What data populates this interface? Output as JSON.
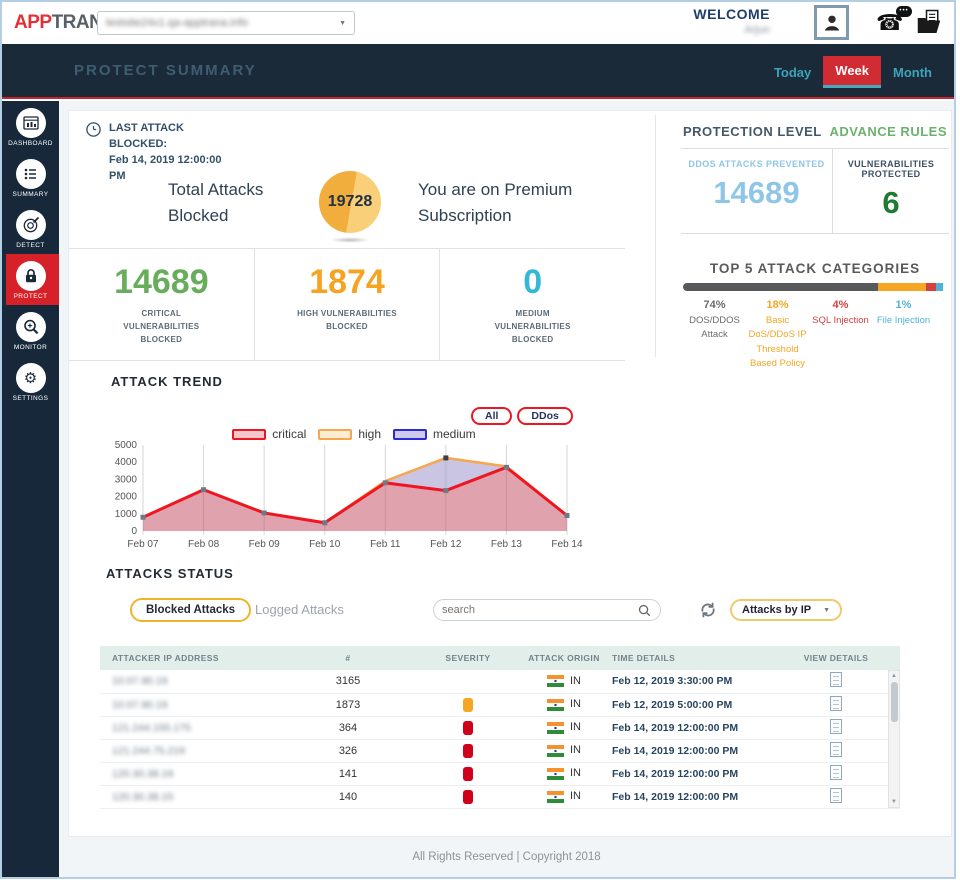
{
  "topbar": {
    "logo_part1": "APP",
    "logo_part2": "TRANA",
    "domain_dropdown": {
      "value": "testsite24x1.qa-apptrana.info",
      "blurred": true
    },
    "welcome_label": "WELCOME",
    "user_name": "Arjun",
    "user_name_blurred": true
  },
  "header": {
    "title": "PROTECT SUMMARY",
    "tabs": [
      {
        "label": "Today",
        "active": false
      },
      {
        "label": "Week",
        "active": true
      },
      {
        "label": "Month",
        "active": false
      }
    ]
  },
  "sidebar": {
    "items": [
      {
        "label": "DASHBOARD",
        "active": false
      },
      {
        "label": "SUMMARY",
        "active": false
      },
      {
        "label": "DETECT",
        "active": false
      },
      {
        "label": "PROTECT",
        "active": true
      },
      {
        "label": "MONITOR",
        "active": false
      },
      {
        "label": "SETTINGS",
        "active": false
      }
    ]
  },
  "overview": {
    "last_attack_label": "LAST ATTACK BLOCKED:",
    "last_attack_time": "Feb 14, 2019 12:00:00 PM",
    "total_attacks_label": "Total Attacks Blocked",
    "total_attacks_value": "19728",
    "subscription_text": "You are on Premium Subscription",
    "stats": [
      {
        "value": "14689",
        "label": "CRITICAL VULNERABILITIES BLOCKED",
        "color": "#67ad5b"
      },
      {
        "value": "1874",
        "label": "HIGH VULNERABILITIES BLOCKED",
        "color": "#f6a321"
      },
      {
        "value": "0",
        "label": "MEDIUM VULNERABILITIES BLOCKED",
        "color": "#35b8d8"
      }
    ]
  },
  "protection_panel": {
    "title": "PROTECTION LEVEL",
    "link": "ADVANCE RULES",
    "ddos_label": "DDOS ATTACKS PREVENTED",
    "ddos_value": "14689",
    "vuln_label": "VULNERABILITIES PROTECTED",
    "vuln_value": "6",
    "top_categories_title": "TOP 5 ATTACK CATEGORIES",
    "categories": [
      {
        "pct": "74%",
        "label": "DOS/DDOS Attack",
        "color": "#6b6b6b",
        "bar_color": "#58595b",
        "width": 74
      },
      {
        "pct": "18%",
        "label": "Basic DoS/DDoS IP Threshold Based Policy",
        "color": "#f5a623",
        "bar_color": "#f5a623",
        "width": 18
      },
      {
        "pct": "4%",
        "label": "SQL Injection",
        "color": "#d43f3f",
        "bar_color": "#d43f3f",
        "width": 4
      },
      {
        "pct": "1%",
        "label": "File Injection",
        "color": "#4fb3d9",
        "bar_color": "#4fb3d9",
        "width": 1
      }
    ]
  },
  "chart_data": {
    "type": "area",
    "title": "ATTACK TREND",
    "filters": [
      "All",
      "DDos"
    ],
    "legend": [
      "critical",
      "high",
      "medium"
    ],
    "x": [
      "Feb 07",
      "Feb 08",
      "Feb 09",
      "Feb 10",
      "Feb 11",
      "Feb 12",
      "Feb 13",
      "Feb 14"
    ],
    "ylim": [
      0,
      5000
    ],
    "yticks": [
      0,
      1000,
      2000,
      3000,
      4000,
      5000
    ],
    "series": [
      {
        "name": "critical",
        "line_color": "#ee1622",
        "fill": "rgba(199,86,103,0.55)",
        "values": [
          800,
          2400,
          1050,
          480,
          2800,
          2350,
          3700,
          900
        ]
      },
      {
        "name": "high",
        "line_color": "#f7a54e",
        "fill": "rgba(148,139,200,0.5)",
        "values": [
          800,
          2400,
          1050,
          480,
          2900,
          4250,
          3750,
          900
        ]
      },
      {
        "name": "medium",
        "line_color": "#2b2bd5",
        "values": [
          0,
          0,
          0,
          0,
          0,
          0,
          0,
          0
        ]
      }
    ]
  },
  "attacks_status": {
    "title": "ATTACKS STATUS",
    "tabs": [
      {
        "label": "Blocked Attacks",
        "active": true
      },
      {
        "label": "Logged Attacks",
        "active": false
      }
    ],
    "search_placeholder": "search",
    "filter_dropdown": "Attacks by IP",
    "table": {
      "columns": [
        "ATTACKER IP ADDRESS",
        "#",
        "SEVERITY",
        "ATTACK ORIGIN",
        "TIME DETAILS",
        "VIEW DETAILS"
      ],
      "ips_blurred": true,
      "rows": [
        {
          "ip": "10.07.90.19",
          "count": "3165",
          "severity": "none",
          "origin": "IN",
          "time": "Feb 12, 2019 3:30:00 PM"
        },
        {
          "ip": "10.07.90.19",
          "count": "1873",
          "severity": "high",
          "origin": "IN",
          "time": "Feb 12, 2019 5:00:00 PM"
        },
        {
          "ip": "121.244.155.175",
          "count": "364",
          "severity": "critical",
          "origin": "IN",
          "time": "Feb 14, 2019 12:00:00 PM"
        },
        {
          "ip": "121.244.75.219",
          "count": "326",
          "severity": "critical",
          "origin": "IN",
          "time": "Feb 14, 2019 12:00:00 PM"
        },
        {
          "ip": "120.30.38.19",
          "count": "141",
          "severity": "critical",
          "origin": "IN",
          "time": "Feb 14, 2019 12:00:00 PM"
        },
        {
          "ip": "120.30.38.15",
          "count": "140",
          "severity": "critical",
          "origin": "IN",
          "time": "Feb 14, 2019 12:00:00 PM"
        }
      ]
    }
  },
  "footer": {
    "text": "All Rights Reserved | Copyright 2018"
  }
}
